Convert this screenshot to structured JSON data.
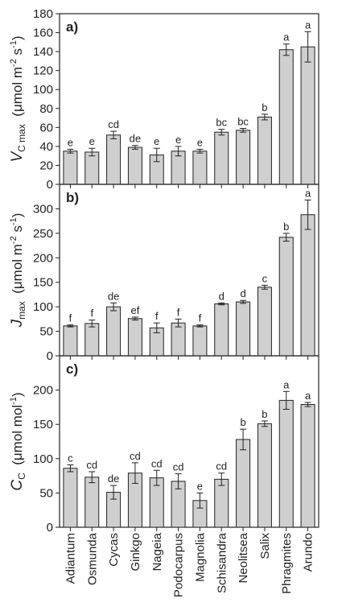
{
  "chart_data": [
    {
      "type": "bar",
      "panel_label": "a)",
      "ylabel_main": "V",
      "ylabel_sub": "C max",
      "ylabel_unit": "(μmol m",
      "ylabel_exp1": "-2",
      "ylabel_unit2": " s",
      "ylabel_exp2": "-1",
      "ylabel_close": ")",
      "ylim": [
        0,
        180
      ],
      "yticks": [
        0,
        20,
        40,
        60,
        80,
        100,
        120,
        140,
        160,
        180
      ],
      "categories": [
        "Adiantum",
        "Osmunda",
        "Cycas",
        "Ginkgo",
        "Nageia",
        "Podocarpus",
        "Magnolia",
        "Schisandra",
        "Neolitsea",
        "Salix",
        "Phragmites",
        "Arundo"
      ],
      "values": [
        35,
        34,
        52,
        39,
        31,
        35,
        35,
        55,
        57,
        71,
        142,
        145
      ],
      "errors": [
        2,
        4,
        4,
        2,
        7,
        5,
        2,
        3,
        2,
        3,
        6,
        16
      ],
      "letters": [
        "e",
        "e",
        "cd",
        "de",
        "e",
        "e",
        "e",
        "bc",
        "bc",
        "b",
        "a",
        "a"
      ]
    },
    {
      "type": "bar",
      "panel_label": "b)",
      "ylabel_main": "J",
      "ylabel_sub": "max",
      "ylabel_unit": "(μmol m",
      "ylabel_exp1": "-2",
      "ylabel_unit2": " s",
      "ylabel_exp2": "-1",
      "ylabel_close": ")",
      "ylim": [
        0,
        350
      ],
      "yticks": [
        0,
        50,
        100,
        150,
        200,
        250,
        300
      ],
      "categories": [
        "Adiantum",
        "Osmunda",
        "Cycas",
        "Ginkgo",
        "Nageia",
        "Podocarpus",
        "Magnolia",
        "Schisandra",
        "Neolitsea",
        "Salix",
        "Phragmites",
        "Arundo"
      ],
      "values": [
        61,
        66,
        100,
        76,
        57,
        67,
        61,
        106,
        110,
        140,
        242,
        288
      ],
      "errors": [
        2,
        7,
        8,
        3,
        10,
        8,
        2,
        2,
        3,
        4,
        8,
        30
      ],
      "letters": [
        "f",
        "f",
        "de",
        "ef",
        "f",
        "f",
        "f",
        "d",
        "d",
        "c",
        "b",
        "a"
      ]
    },
    {
      "type": "bar",
      "panel_label": "c)",
      "ylabel_main": "C",
      "ylabel_sub": "C",
      "ylabel_unit": "(μmol mol",
      "ylabel_exp1": "-1",
      "ylabel_unit2": "",
      "ylabel_exp2": "",
      "ylabel_close": ")",
      "ylim": [
        0,
        250
      ],
      "yticks": [
        0,
        50,
        100,
        150,
        200
      ],
      "categories": [
        "Adiantum",
        "Osmunda",
        "Cycas",
        "Ginkgo",
        "Nageia",
        "Podocarpus",
        "Magnolia",
        "Schisandra",
        "Neolitsea",
        "Salix",
        "Phragmites",
        "Arundo"
      ],
      "values": [
        86,
        73,
        51,
        79,
        72,
        67,
        39,
        70,
        128,
        151,
        185,
        179
      ],
      "errors": [
        5,
        8,
        10,
        15,
        11,
        11,
        11,
        9,
        15,
        4,
        13,
        3
      ],
      "letters": [
        "c",
        "cd",
        "de",
        "cd",
        "cd",
        "cd",
        "e",
        "cd",
        "b",
        "b",
        "a",
        "a"
      ]
    }
  ]
}
